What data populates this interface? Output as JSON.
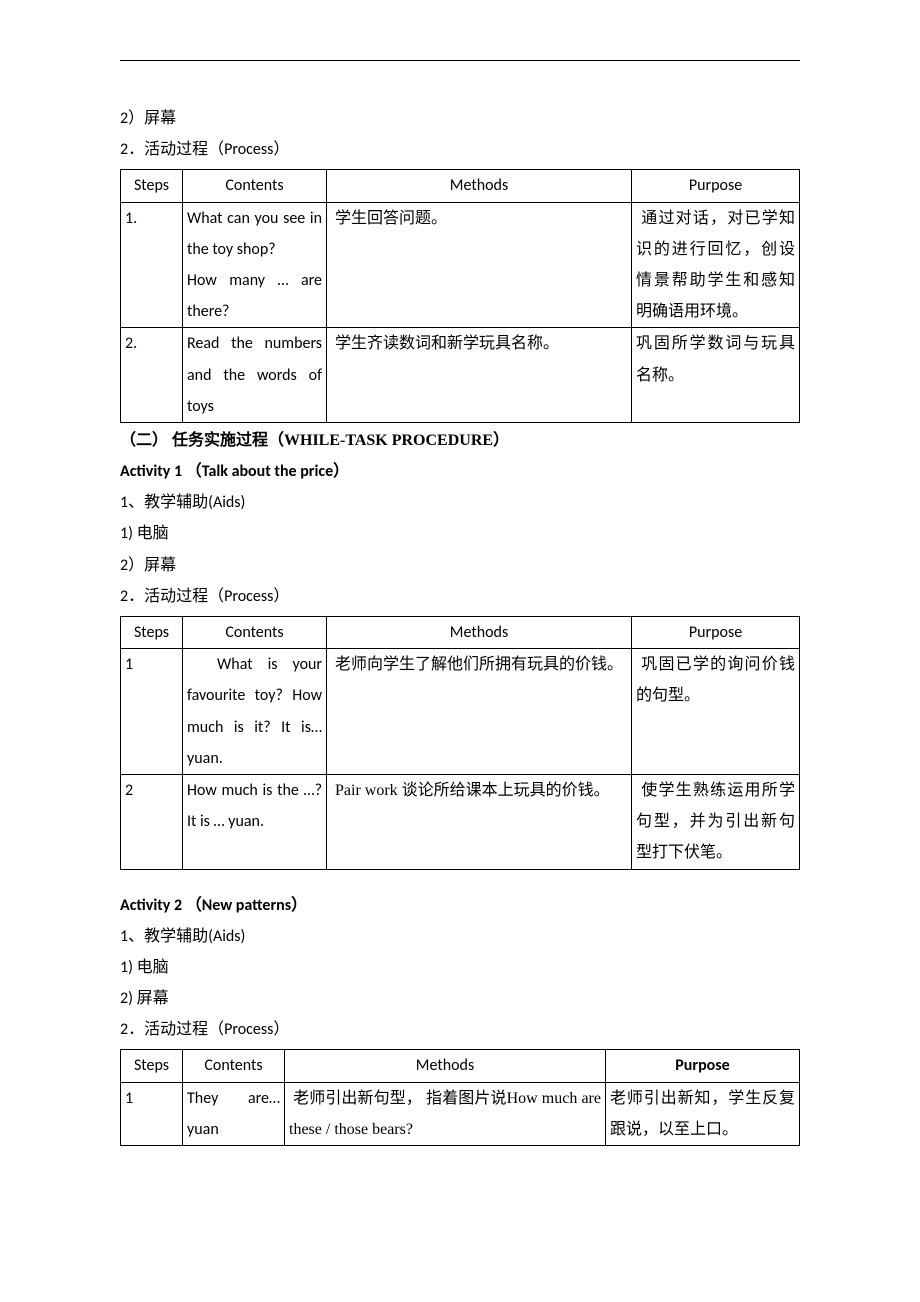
{
  "colors": {
    "text": "#000000",
    "background": "#ffffff",
    "table_border": "#000000",
    "hr": "#000000"
  },
  "typography": {
    "base_font_size_pt": 12,
    "line_height": 1.95,
    "cn_font": "SimSun",
    "en_font": "Calibri"
  },
  "pre": {
    "item2": "2）屏幕",
    "item_process": "2．活动过程（Process）",
    "table": {
      "headers": {
        "steps": "Steps",
        "contents": "Contents",
        "methods": "Methods",
        "purpose": "Purpose"
      },
      "rows": [
        {
          "step": "1.",
          "contents": "What can you see in the toy shop?\nHow many … are there?",
          "methods": "学生回答问题。",
          "purpose": "通过对话，对已学知识的进行回忆，创设情景帮助学生和感知明确语用环境。"
        },
        {
          "step": "2.",
          "contents": "Read the numbers and the words of toys",
          "methods": "学生齐读数词和新学玩具名称。",
          "purpose": "巩固所学数词与玩具名称。"
        }
      ]
    }
  },
  "while": {
    "heading": "（二） 任务实施过程（WHILE-TASK PROCEDURE）",
    "act1": {
      "title": "Activity 1 （Talk about the price）",
      "aids_label": "1、教学辅助(Aids)",
      "aids_1": "1) 电脑",
      "aids_2": "2）屏幕",
      "process_label": "2．活动过程（Process）",
      "table": {
        "headers": {
          "steps": "Steps",
          "contents": "Contents",
          "methods": "Methods",
          "purpose": "Purpose"
        },
        "rows": [
          {
            "step": "1",
            "contents": "What is your favourite toy? How much is it? It is…yuan.",
            "methods": "老师向学生了解他们所拥有玩具的价钱。",
            "purpose": "巩固已学的询问价钱的句型。"
          },
          {
            "step": "2",
            "contents": "How much is the …? It is … yuan.",
            "methods": "Pair work 谈论所给课本上玩具的价钱。",
            "purpose": "使学生熟练运用所学句型，并为引出新句型打下伏笔。"
          }
        ]
      }
    },
    "act2": {
      "title": "Activity 2 （New patterns）",
      "aids_label": "1、教学辅助(Aids)",
      "aids_1": "1) 电脑",
      "aids_2": "2) 屏幕",
      "process_label": "2．活动过程（Process）",
      "table": {
        "headers": {
          "steps": "Steps",
          "contents": "Contents",
          "methods": "Methods",
          "purpose": "Purpose"
        },
        "rows": [
          {
            "step": "1",
            "contents": "They are… yuan",
            "methods": "老师引出新句型， 指着图片说How much are these / those bears?",
            "purpose": "老师引出新知，学生反复跟说，以至上口。"
          }
        ]
      }
    }
  }
}
